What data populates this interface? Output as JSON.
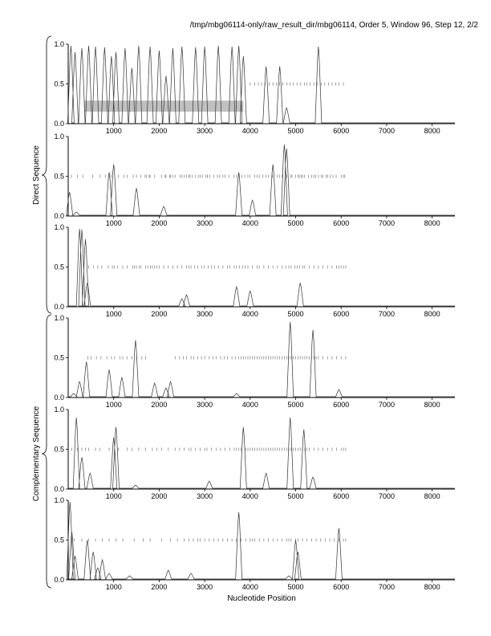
{
  "chart_data": {
    "type": "line",
    "title": "/tmp/mbg06114-only/raw_result_dir/mbg06114, Order 5, Window 96, Step 12, 2/2",
    "xlabel": "Nucleotide Position",
    "group_labels": [
      "Direct Sequence",
      "Complementary Sequence"
    ],
    "xlim": [
      0,
      8500
    ],
    "ylim": [
      0,
      1
    ],
    "x_ticks": [
      1000,
      2000,
      3000,
      4000,
      5000,
      6000,
      7000,
      8000
    ],
    "y_ticks": [
      "0.0",
      "0.5",
      "1.0"
    ],
    "panels": [
      {
        "strand": "direct",
        "highlight": {
          "x": [
            350,
            3850
          ],
          "y": [
            0.15,
            0.29
          ]
        },
        "peaks": [
          [
            60,
            0.98
          ],
          [
            150,
            0.9
          ],
          [
            300,
            0.95
          ],
          [
            450,
            0.98
          ],
          [
            600,
            0.97
          ],
          [
            800,
            0.96
          ],
          [
            950,
            0.85
          ],
          [
            1050,
            0.9
          ],
          [
            1250,
            0.95
          ],
          [
            1400,
            0.7
          ],
          [
            1550,
            0.98
          ],
          [
            1800,
            0.97
          ],
          [
            2000,
            0.92
          ],
          [
            2150,
            0.6
          ],
          [
            2300,
            0.95
          ],
          [
            2500,
            0.97
          ],
          [
            2800,
            0.96
          ],
          [
            3000,
            0.97
          ],
          [
            3300,
            0.98
          ],
          [
            3600,
            0.97
          ],
          [
            3750,
            0.98
          ],
          [
            3850,
            0.85
          ],
          [
            4350,
            0.72
          ],
          [
            4650,
            0.72
          ],
          [
            4800,
            0.2
          ],
          [
            5500,
            0.97
          ]
        ],
        "marks": [
          4000,
          4100,
          4180,
          4250,
          4330,
          4420,
          4500,
          4580,
          4650,
          4720,
          4810,
          4880,
          4950,
          5030,
          5110,
          5190,
          5250,
          5320,
          5400,
          5480,
          5560,
          5640,
          5720,
          5800,
          5880,
          5950,
          6050
        ]
      },
      {
        "strand": "direct",
        "peaks": [
          [
            30,
            0.3
          ],
          [
            180,
            0.05
          ],
          [
            900,
            0.55
          ],
          [
            1000,
            0.65
          ],
          [
            1500,
            0.35
          ],
          [
            2100,
            0.12
          ],
          [
            3750,
            0.55
          ],
          [
            4050,
            0.2
          ],
          [
            4500,
            0.65
          ],
          [
            4750,
            0.9
          ],
          [
            4800,
            0.85
          ]
        ],
        "marks": [
          70,
          200,
          320,
          540,
          700,
          820,
          940,
          1100,
          1230,
          1300,
          1430,
          1500,
          1600,
          1690,
          1720,
          1780,
          1800,
          1900,
          2050,
          2130,
          2150,
          2230,
          2250,
          2300,
          2350,
          2460,
          2500,
          2550,
          2600,
          2650,
          2680,
          2730,
          2800,
          2860,
          2900,
          2950,
          3030,
          3060,
          3110,
          3200,
          3280,
          3330,
          3400,
          3450,
          3530,
          3640,
          3700,
          3760,
          3820,
          3880,
          3950,
          4000,
          4100,
          4150,
          4200,
          4280,
          4350,
          4400,
          4490,
          4600,
          4650,
          4700,
          4800,
          4890,
          4920,
          5000,
          5050,
          5080,
          5120,
          5150,
          5190,
          5280,
          5350,
          5400,
          5440,
          5500,
          5560,
          5600,
          5670,
          5700,
          5760,
          5820,
          5890,
          6000,
          6050,
          6080
        ]
      },
      {
        "strand": "direct",
        "peaks": [
          [
            250,
            0.98
          ],
          [
            300,
            0.97
          ],
          [
            380,
            0.85
          ],
          [
            420,
            0.3
          ],
          [
            2500,
            0.1
          ],
          [
            2600,
            0.15
          ],
          [
            3700,
            0.25
          ],
          [
            4000,
            0.2
          ],
          [
            5100,
            0.3
          ]
        ],
        "marks": [
          450,
          560,
          650,
          740,
          880,
          970,
          1010,
          1090,
          1200,
          1300,
          1420,
          1460,
          1500,
          1560,
          1600,
          1700,
          1750,
          1810,
          1850,
          1900,
          1950,
          2000,
          2100,
          2200,
          2300,
          2400,
          2500,
          2600,
          2650,
          2700,
          2780,
          2850,
          2930,
          2990,
          3080,
          3150,
          3220,
          3300,
          3400,
          3500,
          3550,
          3650,
          3700,
          3760,
          3830,
          3890,
          3950,
          4050,
          4150,
          4200,
          4300,
          4400,
          4500,
          4600,
          4700,
          4780,
          4850,
          4900,
          4980,
          5030,
          5090,
          5160,
          5200,
          5300,
          5400,
          5500,
          5600,
          5700,
          5800,
          5900,
          5950,
          6000,
          6050,
          6100
        ]
      },
      {
        "strand": "complementary",
        "peaks": [
          [
            120,
            0.05
          ],
          [
            250,
            0.2
          ],
          [
            400,
            0.45
          ],
          [
            900,
            0.35
          ],
          [
            1180,
            0.25
          ],
          [
            1480,
            0.72
          ],
          [
            1900,
            0.18
          ],
          [
            2150,
            0.12
          ],
          [
            2250,
            0.2
          ],
          [
            3700,
            0.05
          ],
          [
            4880,
            0.95
          ],
          [
            5380,
            0.85
          ],
          [
            5950,
            0.1
          ]
        ],
        "marks": [
          430,
          500,
          620,
          720,
          850,
          950,
          1020,
          1140,
          1200,
          1290,
          1400,
          1500,
          1620,
          1700,
          2350,
          2450,
          2530,
          2600,
          2700,
          2760,
          2850,
          2930,
          3000,
          3100,
          3180,
          3250,
          3350,
          3430,
          3500,
          3600,
          3680,
          3750,
          3800,
          3850,
          3900,
          3950,
          4000,
          4050,
          4100,
          4150,
          4200,
          4250,
          4300,
          4350,
          4400,
          4450,
          4500,
          4550,
          4600,
          4650,
          4700,
          4750,
          4800,
          4850,
          4900,
          4950,
          5000,
          5050,
          5100,
          5150,
          5200,
          5250,
          5300,
          5350,
          5400,
          5450,
          5500,
          5600,
          5700,
          5800,
          5900,
          6000,
          6100
        ]
      },
      {
        "strand": "complementary",
        "peaks": [
          [
            180,
            0.9
          ],
          [
            300,
            0.4
          ],
          [
            480,
            0.2
          ],
          [
            1000,
            0.65
          ],
          [
            1050,
            0.78
          ],
          [
            1480,
            0.05
          ],
          [
            3100,
            0.1
          ],
          [
            3850,
            0.78
          ],
          [
            4350,
            0.2
          ],
          [
            4880,
            0.9
          ],
          [
            5180,
            0.75
          ],
          [
            5380,
            0.15
          ]
        ],
        "marks": [
          80,
          200,
          300,
          380,
          450,
          600,
          700,
          900,
          1100,
          1300,
          1400,
          1550,
          1700,
          1850,
          1950,
          2050,
          2200,
          2350,
          2450,
          2550,
          2650,
          2700,
          2800,
          2900,
          3000,
          3050,
          3150,
          3250,
          3350,
          3450,
          3550,
          3650,
          3700,
          3750,
          3800,
          3900,
          3950,
          4000,
          4050,
          4100,
          4150,
          4200,
          4250,
          4300,
          4350,
          4400,
          4450,
          4500,
          4550,
          4600,
          4650,
          4700,
          4750,
          4800,
          4850,
          4900,
          4950,
          5000,
          5050,
          5100,
          5150,
          5200,
          5250,
          5300,
          5400,
          5500,
          5600,
          5700,
          5800,
          5900,
          6000,
          6050,
          6100
        ]
      },
      {
        "strand": "complementary",
        "peaks": [
          [
            40,
            0.98
          ],
          [
            80,
            0.6
          ],
          [
            150,
            0.3
          ],
          [
            420,
            0.5
          ],
          [
            550,
            0.35
          ],
          [
            650,
            0.15
          ],
          [
            750,
            0.25
          ],
          [
            900,
            0.08
          ],
          [
            1350,
            0.05
          ],
          [
            2200,
            0.12
          ],
          [
            2700,
            0.08
          ],
          [
            3750,
            0.85
          ],
          [
            4850,
            0.05
          ],
          [
            5000,
            0.5
          ],
          [
            5050,
            0.35
          ],
          [
            5950,
            0.65
          ]
        ],
        "marks": [
          130,
          300,
          450,
          600,
          750,
          900,
          1050,
          1200,
          1450,
          1650,
          1800,
          2050,
          2250,
          2400,
          2550,
          2650,
          2750,
          2850,
          2900,
          3000,
          3100,
          3200,
          3300,
          3400,
          3500,
          3600,
          3700,
          3800,
          3900,
          4000,
          4050,
          4100,
          4200,
          4300,
          4400,
          4500,
          4600,
          4700,
          4800,
          4850,
          4900,
          5000,
          5050,
          5150,
          5250,
          5350,
          5450,
          5550,
          5650,
          5750,
          5850,
          5950,
          6050,
          6100
        ]
      }
    ]
  }
}
